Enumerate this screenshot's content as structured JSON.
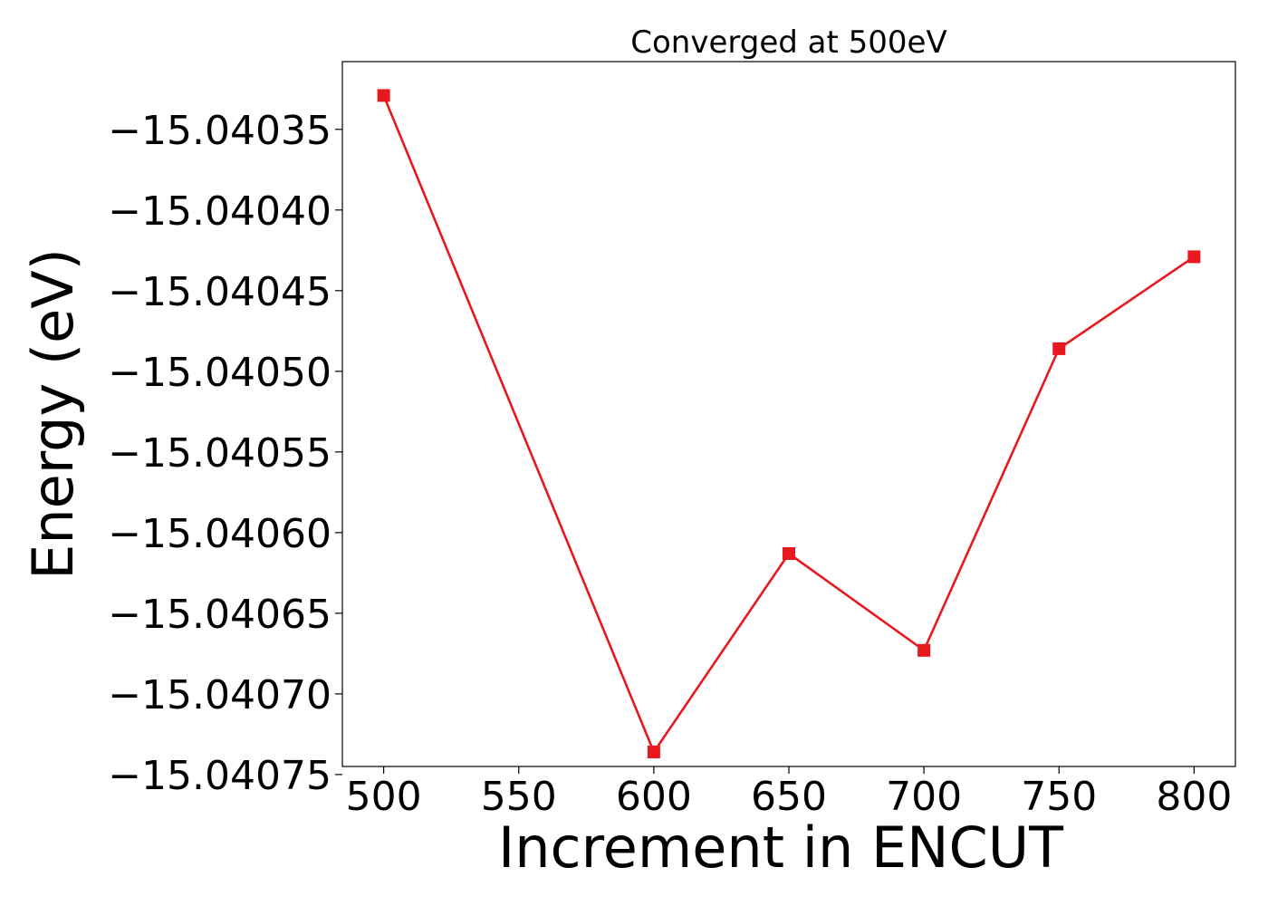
{
  "chart_data": {
    "type": "line",
    "title": "Converged at 500eV",
    "xlabel": "Increment in ENCUT",
    "ylabel": "Energy (eV)",
    "x": [
      500,
      600,
      650,
      700,
      750,
      800
    ],
    "series": [
      {
        "values": [
          -15.040329,
          -15.040736,
          -15.040613,
          -15.040673,
          -15.040486,
          -15.040429
        ],
        "color": "#e8191e",
        "marker": "square"
      }
    ],
    "xticks": [
      500,
      550,
      600,
      650,
      700,
      750,
      800
    ],
    "xtick_labels": [
      "500",
      "550",
      "600",
      "650",
      "700",
      "750",
      "800"
    ],
    "yticks": [
      -15.04035,
      -15.0404,
      -15.04045,
      -15.0405,
      -15.04055,
      -15.0406,
      -15.04065,
      -15.0407,
      -15.04075
    ],
    "ytick_labels": [
      "−15.04035",
      "−15.04040",
      "−15.04045",
      "−15.04050",
      "−15.04055",
      "−15.04060",
      "−15.04065",
      "−15.04070",
      "−15.04075"
    ],
    "xlim": [
      484.7,
      815.3
    ],
    "ylim": [
      -15.040745,
      -15.040308
    ],
    "grid": false,
    "legend": "none"
  }
}
